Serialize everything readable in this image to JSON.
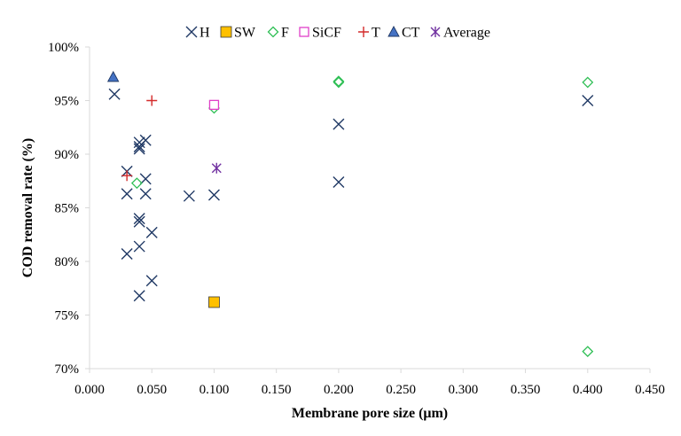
{
  "chart_data": {
    "type": "scatter",
    "title": "",
    "xlabel": "Membrane pore size (μm)",
    "ylabel": "COD removal rate (%)",
    "xlim": [
      0,
      0.45
    ],
    "ylim": [
      70,
      100
    ],
    "x_ticks": [
      0,
      0.05,
      0.1,
      0.15,
      0.2,
      0.25,
      0.3,
      0.35,
      0.4,
      0.45
    ],
    "x_tick_labels": [
      "0.000",
      "0.050",
      "0.100",
      "0.150",
      "0.200",
      "0.250",
      "0.300",
      "0.350",
      "0.400",
      "0.450"
    ],
    "y_ticks": [
      70,
      75,
      80,
      85,
      90,
      95,
      100
    ],
    "y_tick_labels": [
      "70%",
      "75%",
      "80%",
      "85%",
      "90%",
      "95%",
      "100%"
    ],
    "grid": false,
    "legend_position": "top",
    "series": [
      {
        "name": "H",
        "marker": "x",
        "color": "#1f3864",
        "points": [
          [
            0.02,
            95.6
          ],
          [
            0.03,
            88.4
          ],
          [
            0.03,
            86.3
          ],
          [
            0.03,
            80.7
          ],
          [
            0.04,
            91.1
          ],
          [
            0.04,
            90.7
          ],
          [
            0.04,
            90.5
          ],
          [
            0.04,
            84.0
          ],
          [
            0.04,
            83.7
          ],
          [
            0.04,
            81.4
          ],
          [
            0.04,
            76.8
          ],
          [
            0.045,
            91.3
          ],
          [
            0.045,
            87.7
          ],
          [
            0.045,
            86.3
          ],
          [
            0.05,
            82.7
          ],
          [
            0.05,
            78.2
          ],
          [
            0.08,
            86.1
          ],
          [
            0.1,
            86.2
          ],
          [
            0.2,
            92.8
          ],
          [
            0.2,
            87.4
          ],
          [
            0.4,
            95.0
          ]
        ]
      },
      {
        "name": "SW",
        "marker": "square",
        "color": "#ffc000",
        "points": [
          [
            0.1,
            76.2
          ]
        ]
      },
      {
        "name": "F",
        "marker": "diamond",
        "color": "#2fbf55",
        "points": [
          [
            0.038,
            87.3
          ],
          [
            0.1,
            94.3
          ],
          [
            0.2,
            96.7
          ],
          [
            0.2,
            96.8
          ],
          [
            0.4,
            96.7
          ],
          [
            0.4,
            71.6
          ]
        ]
      },
      {
        "name": "SiCF",
        "marker": "open-square",
        "color": "#e040c8",
        "points": [
          [
            0.1,
            94.6
          ]
        ]
      },
      {
        "name": "T",
        "marker": "plus",
        "color": "#d42a2a",
        "points": [
          [
            0.03,
            88.0
          ],
          [
            0.05,
            95.0
          ]
        ]
      },
      {
        "name": "CT",
        "marker": "triangle",
        "color": "#4472c4",
        "points": [
          [
            0.019,
            97.2
          ]
        ]
      },
      {
        "name": "Average",
        "marker": "asterisk",
        "color": "#7030a0",
        "points": [
          [
            0.102,
            88.7
          ]
        ]
      }
    ]
  }
}
